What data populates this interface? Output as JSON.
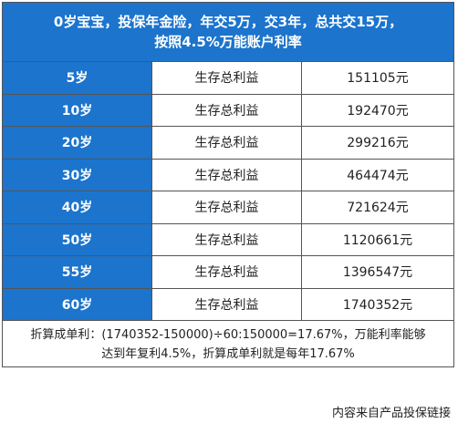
{
  "header": {
    "line1": "0岁宝宝，投保年金险，年交5万，交3年，总共交15万，",
    "line2": "按照4.5%万能账户利率"
  },
  "rows": [
    {
      "age": "5岁",
      "metric": "生存总利益",
      "value": "151105元"
    },
    {
      "age": "10岁",
      "metric": "生存总利益",
      "value": "192470元"
    },
    {
      "age": "20岁",
      "metric": "生存总利益",
      "value": "299216元"
    },
    {
      "age": "30岁",
      "metric": "生存总利益",
      "value": "464474元"
    },
    {
      "age": "40岁",
      "metric": "生存总利益",
      "value": "721624元"
    },
    {
      "age": "50岁",
      "metric": "生存总利益",
      "value": "1120661元"
    },
    {
      "age": "55岁",
      "metric": "生存总利益",
      "value": "1396547元"
    },
    {
      "age": "60岁",
      "metric": "生存总利益",
      "value": "1740352元"
    }
  ],
  "note": {
    "line1": "折算成单利：(1740352-150000)÷60:150000=17.67%，万能利率能够",
    "line2": "达到年复利4.5%，折算成单利就是每年17.67%"
  },
  "footer": {
    "source": "内容来自产品投保链接"
  },
  "colors": {
    "accent": "#1c74cc",
    "border": "#555555",
    "text": "#222222"
  }
}
